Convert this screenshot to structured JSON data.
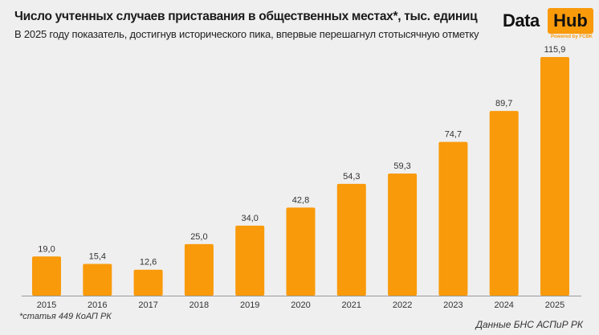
{
  "chart_data": {
    "type": "bar",
    "title": "Число учтенных случаев приставания в общественных местах*, тыс. единиц",
    "subtitle": "В 2025 году показатель, достигнув исторического пика, впервые перешагнул стотысячную отметку",
    "categories": [
      "2015",
      "2016",
      "2017",
      "2018",
      "2019",
      "2020",
      "2021",
      "2022",
      "2023",
      "2024",
      "2025"
    ],
    "values": [
      19.0,
      15.4,
      12.6,
      25.0,
      34.0,
      42.8,
      54.3,
      59.3,
      74.7,
      89.7,
      115.9
    ],
    "value_labels": [
      "19,0",
      "15,4",
      "12,6",
      "25,0",
      "34,0",
      "42,8",
      "54,3",
      "59,3",
      "74,7",
      "89,7",
      "115,9"
    ],
    "xlabel": "",
    "ylabel": "",
    "ylim": [
      0,
      116
    ],
    "grid": false,
    "bar_color": "#f99a0a"
  },
  "footnote": "*статья 449 КоАП РК",
  "source": "Данные БНС АСПиР РК",
  "logo": {
    "data": "Data",
    "hub": "Hub",
    "powered": "Powered by FCBK"
  }
}
